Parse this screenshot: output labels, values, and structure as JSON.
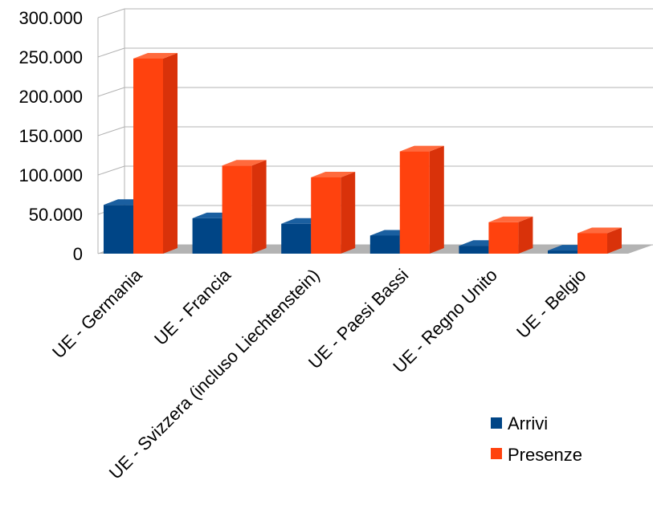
{
  "chart_data": {
    "type": "bar",
    "categories": [
      "UE - Germania",
      "UE - Francia",
      "UE - Svizzera (incluso Liechtenstein)",
      "UE - Paesi Bassi",
      "UE - Regno Unito",
      "UE - Belgio"
    ],
    "series": [
      {
        "name": "Arrivi",
        "values": [
          62000,
          45000,
          38000,
          23000,
          10000,
          4000
        ]
      },
      {
        "name": "Presenze",
        "values": [
          248000,
          112000,
          97000,
          130000,
          40000,
          26000
        ]
      }
    ],
    "ylim": [
      0,
      300000
    ],
    "yticks": [
      0,
      50000,
      100000,
      150000,
      200000,
      250000,
      300000
    ],
    "ytick_labels": [
      "0",
      "50.000",
      "100.000",
      "150.000",
      "200.000",
      "250.000",
      "300.000"
    ],
    "grid": true,
    "legend_position": "bottom-right",
    "colors": {
      "Arrivi": "#004586",
      "Presenze": "#ff420e",
      "grid": "#b3b3b3",
      "floor": "#b3b3b3"
    },
    "style": "3d"
  }
}
